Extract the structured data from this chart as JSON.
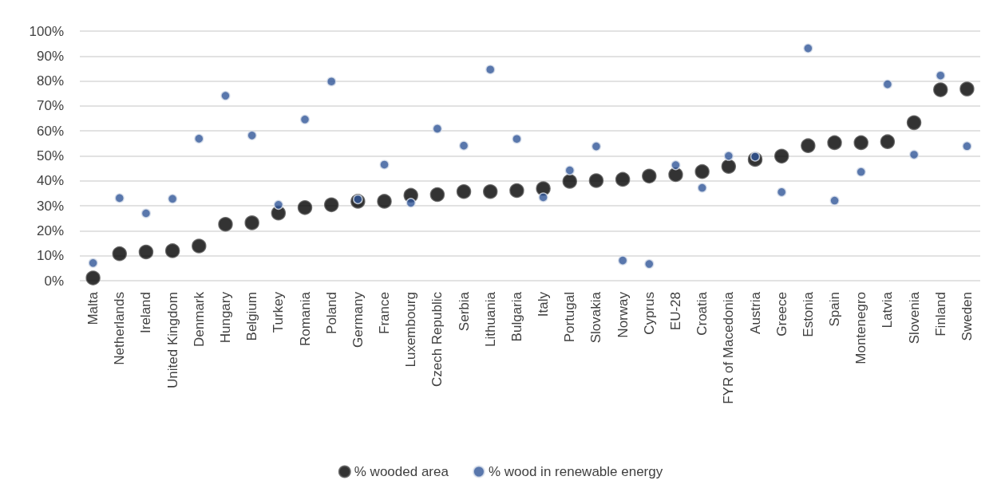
{
  "chart_data": {
    "type": "scatter",
    "categories": [
      "Malta",
      "Netherlands",
      "Ireland",
      "United Kingdom",
      "Denmark",
      "Hungary",
      "Belgium",
      "Turkey",
      "Romania",
      "Poland",
      "Germany",
      "France",
      "Luxembourg",
      "Czech Republic",
      "Serbia",
      "Lithuania",
      "Bulgaria",
      "Italy",
      "Portugal",
      "Slovakia",
      "Norway",
      "Cyprus",
      "EU-28",
      "Croatia",
      "FYR of Macedonia",
      "Austria",
      "Greece",
      "Estonia",
      "Spain",
      "Montenegro",
      "Latvia",
      "Slovenia",
      "Finland",
      "Sweden"
    ],
    "series": [
      {
        "name": "% wooded area",
        "color": "#000000",
        "values": [
          1.1,
          10.8,
          11.5,
          12,
          13.9,
          22.6,
          23.2,
          27.1,
          29.3,
          30.4,
          31.8,
          31.8,
          34.2,
          34.5,
          35.7,
          35.7,
          36.1,
          36.9,
          39.8,
          40.1,
          40.6,
          41.9,
          42.5,
          43.7,
          45.8,
          48.6,
          49.9,
          54.1,
          55.3,
          55.3,
          55.7,
          63.3,
          76.5,
          76.8
        ]
      },
      {
        "name": "% wood in renewable energy",
        "color": "#2f5597",
        "values": [
          7.1,
          33.1,
          27,
          32.8,
          56.9,
          74.1,
          58.2,
          30.4,
          64.6,
          79.8,
          32.6,
          46.5,
          31.2,
          60.9,
          54.1,
          84.6,
          56.8,
          33.4,
          44.2,
          53.8,
          8.1,
          6.7,
          46.3,
          37.2,
          50,
          49.7,
          35.5,
          93.1,
          32.1,
          43.6,
          78.7,
          50.5,
          82.2,
          53.9
        ]
      }
    ],
    "ylim": [
      0,
      100
    ],
    "yticks": [
      {
        "value": 0,
        "label": "0%"
      },
      {
        "value": 10,
        "label": "10%"
      },
      {
        "value": 20,
        "label": "20%"
      },
      {
        "value": 30,
        "label": "30%"
      },
      {
        "value": 40,
        "label": "40%"
      },
      {
        "value": 50,
        "label": "50%"
      },
      {
        "value": 60,
        "label": "60%"
      },
      {
        "value": 70,
        "label": "70%"
      },
      {
        "value": 80,
        "label": "80%"
      },
      {
        "value": 90,
        "label": "90%"
      },
      {
        "value": 100,
        "label": "100%"
      }
    ],
    "grid": "y",
    "legend": "bottom",
    "marker": "circle"
  }
}
